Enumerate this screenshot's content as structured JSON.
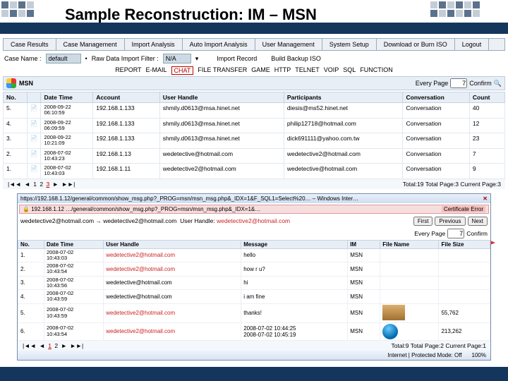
{
  "slide": {
    "title": "Sample Reconstruction: IM – MSN"
  },
  "mainTabs": [
    "Case Results",
    "Case Management",
    "Import Analysis",
    "Auto Import Analysis",
    "User Management",
    "System Setup",
    "Download or Burn ISO",
    "Logout"
  ],
  "caseRow": {
    "caseLabel": "Case Name :",
    "caseValue": "default",
    "filterLabel": "Raw Data Import Filter :",
    "filterValue": "N/A",
    "importRecord": "Import Record",
    "buildIso": "Build Backup ISO"
  },
  "protoTabs": {
    "items": [
      "REPORT",
      "E-MAIL",
      "CHAT",
      "FILE TRANSFER",
      "GAME",
      "HTTP",
      "TELNET",
      "VOIP",
      "SQL",
      "FUNCTION"
    ],
    "activeIndex": 2
  },
  "msnBar": {
    "label": "MSN",
    "everyLabel": "Every Page",
    "everyValue": "7",
    "confirm": "Confirm"
  },
  "tableCols": [
    "No.",
    "",
    "Date Time",
    "Account",
    "User Handle",
    "Participants",
    "Conversation",
    "Count"
  ],
  "tableRows": [
    {
      "no": "5.",
      "dt": "2008-09-22\n06:10:59",
      "acct": "192.168.1.133",
      "uh": "shmily.d0613@msa.hinet.net",
      "part": "diesis@ms52.hinet.net",
      "conv": "Conversation",
      "cnt": "40"
    },
    {
      "no": "4.",
      "dt": "2008-09-22\n06:09:59",
      "acct": "192.168.1.133",
      "uh": "shmily.d0613@msa.hinet.net",
      "part": "philip12718@hotmail.com",
      "conv": "Conversation",
      "cnt": "12"
    },
    {
      "no": "3.",
      "dt": "2008-09-22\n10:21:09",
      "acct": "192.168.1.133",
      "uh": "shmily.d0613@msa.hinet.net",
      "part": "dick691111@yahoo.com.tw",
      "conv": "Conversation",
      "cnt": "23"
    },
    {
      "no": "2.",
      "dt": "2008-07-02\n10:43:23",
      "acct": "192.168.1.13",
      "uh": "wedetective@hotmail.com",
      "part": "wedetective2@hotmail.com",
      "conv": "Conversation",
      "cnt": "7"
    },
    {
      "no": "1.",
      "dt": "2008-07-02\n10:43:03",
      "acct": "192.168.1.11",
      "uh": "wedetective2@hotmail.com",
      "part": "wedetective@hotmail.com",
      "conv": "Conversation",
      "cnt": "9"
    }
  ],
  "pager": {
    "navFirst": "|◄◄",
    "navPrev": "◄",
    "pages": [
      "1",
      "2",
      "3"
    ],
    "cur": "3",
    "navNext": "►",
    "navLast": "►►|",
    "totals": "Total:19  Total Page:3  Current Page:3"
  },
  "subWin": {
    "title": "https://192.168.1.12/general/common/show_msg.php?_PROG=msn/msn_msg.php&_IDX=1&F_SQL1=Select%20… – Windows Inter…",
    "urlBar": "192.168.1.12",
    "certErr": "Certificate Error",
    "header": {
      "left": "wedetective2@hotmail.com → wedetective2@hotmail.com",
      "uhLabel": "User Handle:",
      "uh": "wedetective2@hotmail.com",
      "btnFirst": "First",
      "btnPrev": "Previous",
      "btnNext": "Next",
      "everyLabel": "Every Page",
      "everyValue": "7",
      "confirm": "Confirm"
    },
    "cols": [
      "No.",
      "Date Time",
      "User Handle",
      "Message",
      "IM",
      "File Name",
      "File Size"
    ],
    "rows": [
      {
        "no": "1.",
        "dt": "2008-07-02\n10:43:03",
        "uh": "wedetective2@hotmail.com",
        "msg": "hello",
        "im": "MSN",
        "fn": "",
        "fs": ""
      },
      {
        "no": "2.",
        "dt": "2008-07-02\n10:43:54",
        "uh": "wedetective2@hotmail.com",
        "msg": "how r u?",
        "im": "MSN",
        "fn": "",
        "fs": ""
      },
      {
        "no": "3.",
        "dt": "2008-07-02\n10:43:56",
        "uh": "wedetective@hotmail.com",
        "msg": "hi",
        "im": "MSN",
        "fn": "",
        "fs": ""
      },
      {
        "no": "4.",
        "dt": "2008-07-02\n10:43:59",
        "uh": "wedetective@hotmail.com",
        "msg": "i am fine",
        "im": "MSN",
        "fn": "",
        "fs": ""
      },
      {
        "no": "5.",
        "dt": "2008-07-02\n10:43:59",
        "uh": "wedetective2@hotmail.com",
        "msg": "thanks!",
        "im": "MSN",
        "fn": "[thumb]",
        "fs": "55,762"
      },
      {
        "no": "6.",
        "dt": "2008-07-02\n10:43:54",
        "uh": "wedetective2@hotmail.com",
        "msg": "2008-07-02 10:44:25\n2008-07-02 10:45:19",
        "im": "MSN",
        "fn": "[media]",
        "fs": "213,262"
      }
    ],
    "pager": {
      "navFirst": "|◄◄",
      "navPrev": "◄",
      "pages": [
        "1",
        "2"
      ],
      "cur": "1",
      "navNext": "►",
      "navLast": "►►|",
      "totals": "Total:9  Total Page:2  Current Page:1"
    },
    "status": {
      "mode": "Internet | Protected Mode: Off",
      "zoom": "100%"
    },
    "colors": {
      "highlight": "#c22222",
      "headerBg": "#e8eef6"
    }
  }
}
